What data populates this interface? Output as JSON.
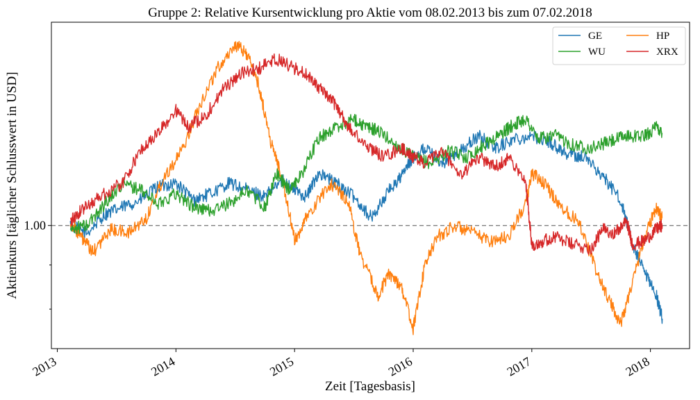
{
  "chart_data": {
    "type": "line",
    "title": "Gruppe 2: Relative Kursentwicklung pro Aktie vom 08.02.2013 bis zum 07.02.2018",
    "xlabel": "Zeit [Tagesbasis]",
    "ylabel": "Aktienkurs [täglicher Schlusswert in USD]",
    "y_scale": "log",
    "ylim": [
      0.72,
      1.72
    ],
    "xlim": [
      2012.95,
      2018.33
    ],
    "x_ticks": [
      "2013",
      "2014",
      "2015",
      "2016",
      "2017",
      "2018"
    ],
    "x_tick_values": [
      2013,
      2014,
      2015,
      2016,
      2017,
      2018
    ],
    "y_tick_labels": [
      "1.00"
    ],
    "y_tick_values": [
      1.0
    ],
    "y_minor_ticks": [
      0.8,
      0.9
    ],
    "reference_line": {
      "y": 1.0,
      "style": "dashed",
      "color": "#808080"
    },
    "grid": false,
    "legend": {
      "placement": "top-right",
      "columns": 2
    },
    "series": [
      {
        "name": "GE",
        "color": "#1f77b4",
        "x": [
          2013.11,
          2013.25,
          2013.4,
          2013.55,
          2013.7,
          2013.85,
          2014.0,
          2014.15,
          2014.3,
          2014.45,
          2014.6,
          2014.75,
          2014.9,
          2015.0,
          2015.1,
          2015.2,
          2015.35,
          2015.5,
          2015.65,
          2015.8,
          2015.9,
          2016.0,
          2016.1,
          2016.25,
          2016.4,
          2016.55,
          2016.7,
          2016.85,
          2017.0,
          2017.15,
          2017.3,
          2017.45,
          2017.6,
          2017.75,
          2017.85,
          2017.95,
          2018.05,
          2018.1
        ],
        "values": [
          1.0,
          0.98,
          1.03,
          1.05,
          1.07,
          1.11,
          1.12,
          1.07,
          1.09,
          1.12,
          1.1,
          1.08,
          1.13,
          1.1,
          1.08,
          1.15,
          1.12,
          1.08,
          1.02,
          1.1,
          1.14,
          1.2,
          1.23,
          1.18,
          1.22,
          1.27,
          1.23,
          1.26,
          1.27,
          1.25,
          1.21,
          1.2,
          1.14,
          1.07,
          0.95,
          0.88,
          0.83,
          0.78
        ]
      },
      {
        "name": "HP",
        "color": "#ff7f0e",
        "x": [
          2013.11,
          2013.2,
          2013.3,
          2013.45,
          2013.6,
          2013.75,
          2013.9,
          2014.05,
          2014.2,
          2014.35,
          2014.5,
          2014.6,
          2014.7,
          2014.8,
          2014.9,
          2015.0,
          2015.1,
          2015.3,
          2015.45,
          2015.55,
          2015.7,
          2015.8,
          2015.9,
          2016.0,
          2016.1,
          2016.2,
          2016.35,
          2016.5,
          2016.65,
          2016.8,
          2016.95,
          2017.0,
          2017.1,
          2017.25,
          2017.4,
          2017.55,
          2017.65,
          2017.75,
          2017.85,
          2017.95,
          2018.05,
          2018.1
        ],
        "values": [
          1.01,
          0.97,
          0.93,
          0.99,
          0.98,
          1.02,
          1.14,
          1.22,
          1.38,
          1.52,
          1.62,
          1.58,
          1.45,
          1.25,
          1.13,
          0.96,
          1.02,
          1.12,
          1.07,
          0.93,
          0.83,
          0.88,
          0.85,
          0.76,
          0.9,
          0.97,
          1.0,
          0.98,
          0.96,
          0.97,
          1.06,
          1.15,
          1.12,
          1.05,
          1.01,
          0.88,
          0.82,
          0.77,
          0.86,
          0.97,
          1.05,
          1.02
        ]
      },
      {
        "name": "WU",
        "color": "#2ca02c",
        "x": [
          2013.11,
          2013.25,
          2013.4,
          2013.55,
          2013.7,
          2013.85,
          2014.0,
          2014.15,
          2014.3,
          2014.45,
          2014.6,
          2014.75,
          2014.85,
          2014.95,
          2015.05,
          2015.2,
          2015.35,
          2015.5,
          2015.6,
          2015.7,
          2015.85,
          2016.0,
          2016.15,
          2016.3,
          2016.45,
          2016.6,
          2016.75,
          2016.85,
          2016.95,
          2017.05,
          2017.2,
          2017.35,
          2017.5,
          2017.65,
          2017.8,
          2017.95,
          2018.05,
          2018.1
        ],
        "values": [
          0.99,
          1.0,
          1.06,
          1.12,
          1.1,
          1.06,
          1.09,
          1.05,
          1.04,
          1.06,
          1.1,
          1.05,
          1.15,
          1.1,
          1.14,
          1.26,
          1.3,
          1.33,
          1.3,
          1.29,
          1.24,
          1.2,
          1.18,
          1.22,
          1.2,
          1.24,
          1.28,
          1.31,
          1.33,
          1.26,
          1.27,
          1.24,
          1.23,
          1.25,
          1.27,
          1.27,
          1.3,
          1.28
        ]
      },
      {
        "name": "XRX",
        "color": "#d62728",
        "x": [
          2013.11,
          2013.2,
          2013.35,
          2013.55,
          2013.7,
          2013.85,
          2014.0,
          2014.1,
          2014.25,
          2014.4,
          2014.55,
          2014.7,
          2014.85,
          2015.0,
          2015.15,
          2015.25,
          2015.35,
          2015.45,
          2015.6,
          2015.75,
          2015.9,
          2016.0,
          2016.1,
          2016.25,
          2016.4,
          2016.55,
          2016.7,
          2016.8,
          2016.95,
          2017.0,
          2017.1,
          2017.2,
          2017.35,
          2017.5,
          2017.6,
          2017.7,
          2017.8,
          2017.85,
          2017.95,
          2018.05,
          2018.1
        ],
        "values": [
          1.01,
          1.04,
          1.08,
          1.12,
          1.22,
          1.28,
          1.36,
          1.3,
          1.34,
          1.44,
          1.5,
          1.52,
          1.56,
          1.52,
          1.48,
          1.42,
          1.38,
          1.3,
          1.24,
          1.2,
          1.23,
          1.2,
          1.18,
          1.22,
          1.14,
          1.2,
          1.17,
          1.2,
          1.12,
          0.95,
          0.96,
          0.97,
          0.95,
          0.94,
          0.99,
          0.98,
          1.01,
          0.95,
          0.96,
          0.99,
          1.0
        ]
      }
    ]
  }
}
